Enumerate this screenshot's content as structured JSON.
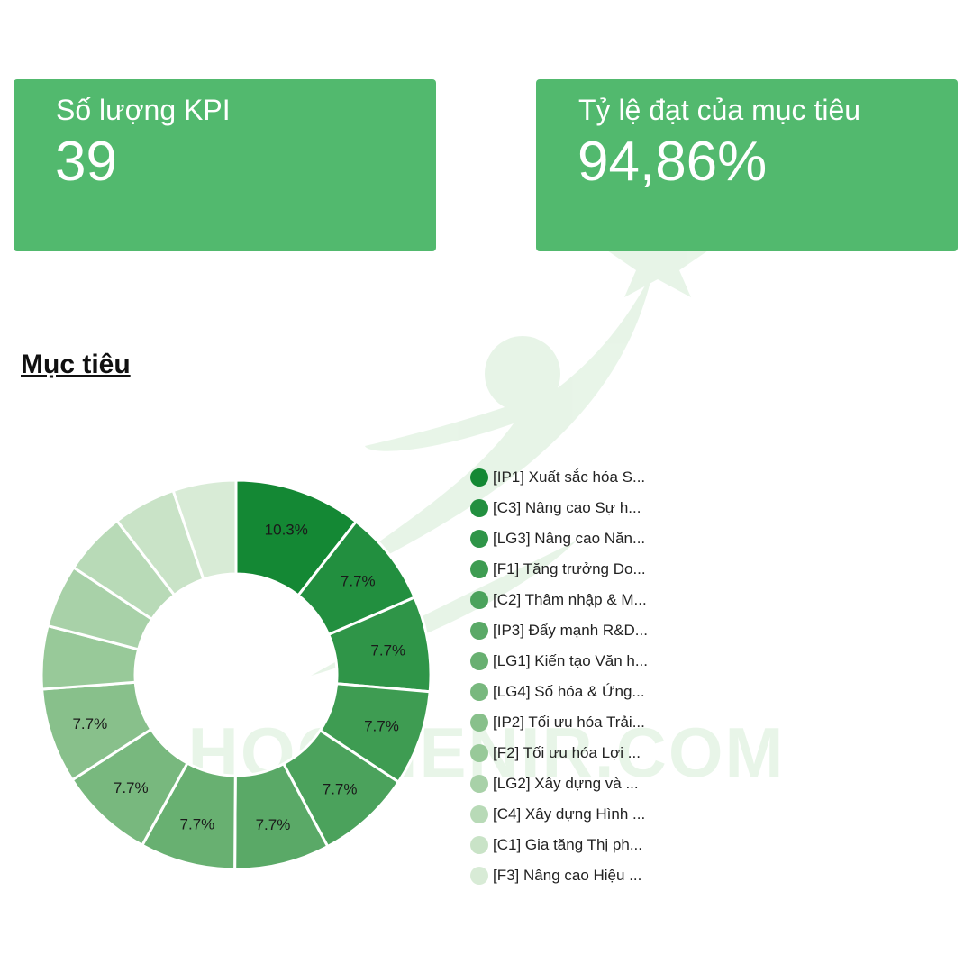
{
  "kpis": {
    "count": {
      "label": "Số lượng KPI",
      "value": "39"
    },
    "rate": {
      "label": "Tỷ lệ đạt của mục tiêu",
      "value": "94,86%"
    }
  },
  "section_title": "Mục tiêu",
  "watermark": {
    "text": "HOCVIENIR.COM",
    "color": "#4caf50"
  },
  "chart_data": {
    "type": "pie",
    "donut": true,
    "legend_position": "right",
    "categories": [
      "[IP1] Xuất sắc hóa S...",
      "[C3] Nâng cao Sự h...",
      "[LG3] Nâng cao Năn...",
      "[F1] Tăng trưởng Do...",
      "[C2] Thâm nhập & M...",
      "[IP3] Đẩy mạnh R&D...",
      "[LG1] Kiến tạo Văn h...",
      "[LG4] Số hóa & Ứng...",
      "[IP2] Tối ưu hóa Trải...",
      "[F2] Tối ưu hóa Lợi ...",
      "[LG2] Xây dựng và ...",
      "[C4] Xây dựng Hình ...",
      "[C1] Gia tăng Thị ph...",
      "[F3] Nâng cao Hiệu ..."
    ],
    "values": [
      10.3,
      7.7,
      7.7,
      7.7,
      7.7,
      7.7,
      7.7,
      7.7,
      7.7,
      5.1,
      5.1,
      5.1,
      5.1,
      5.1
    ],
    "data_labels": [
      "10.3%",
      "7.7%",
      "7.7%",
      "7.7%",
      "7.7%",
      "7.7%",
      "7.7%",
      "7.7%",
      "7.7%",
      "",
      "",
      "",
      "",
      ""
    ],
    "colors": [
      "#148834",
      "#228f3f",
      "#2f9548",
      "#3e9c52",
      "#4ba25c",
      "#5aa967",
      "#68b071",
      "#78b87e",
      "#88c08b",
      "#98c999",
      "#a8d1a8",
      "#b8dab7",
      "#c9e3c7",
      "#d8ebd6"
    ]
  }
}
